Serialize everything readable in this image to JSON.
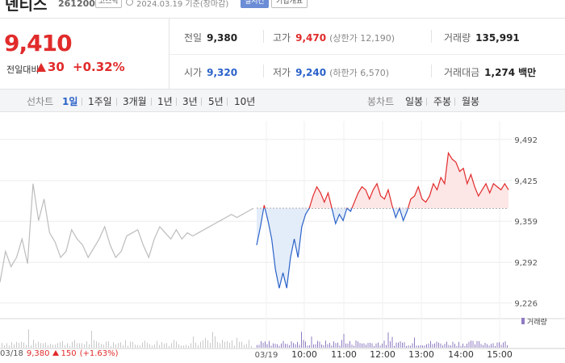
{
  "header": {
    "name": "덴티스",
    "code": "261200",
    "market": "코스닥",
    "date": "2024.03.19 기준(장마감)",
    "realtime_label": "실시간",
    "company_label": "기업개요"
  },
  "price": {
    "current": "9,410",
    "change_label": "전일대비",
    "change": "30",
    "change_pct": "+0.32%"
  },
  "stats": {
    "prev_label": "전일",
    "prev": "9,380",
    "high_label": "고가",
    "high": "9,470",
    "upper_label": "(상한가 12,190)",
    "volume_label": "거래량",
    "volume": "135,991",
    "open_label": "시가",
    "open": "9,320",
    "low_label": "저가",
    "low": "9,240",
    "lower_label": "(하한가 6,570)",
    "amount_label": "거래대금",
    "amount": "1,274",
    "amount_unit": "백만"
  },
  "toolbar": {
    "line_chart": "선차트",
    "periods": [
      "1일",
      "1주일",
      "3개월",
      "1년",
      "3년",
      "5년",
      "10년"
    ],
    "candle_chart": "봉차트",
    "candles": [
      "일봉",
      "주봉",
      "월봉"
    ]
  },
  "volume_legend": "거래량",
  "prev_day": {
    "date": "03/18",
    "price": "9,380",
    "change": "150",
    "pct": "(+1.63%)"
  },
  "colors": {
    "up": "#e12b2b",
    "down": "#2a62c9",
    "prev": "#bcbcbc",
    "volume": "#8f7bc2"
  },
  "chart_data": {
    "type": "line",
    "y_ticks": [
      "9,492",
      "9,425",
      "9,359",
      "9,292",
      "9,226"
    ],
    "y_tick_values": [
      9492,
      9425,
      9359,
      9292,
      9226
    ],
    "ylim": [
      9207,
      9522
    ],
    "x_ticks": [
      "03/19",
      "10:00",
      "11:00",
      "12:00",
      "13:00",
      "14:00",
      "15:00"
    ],
    "baseline": 9380,
    "prev_day_series": [
      9260,
      9310,
      9285,
      9300,
      9330,
      9290,
      9420,
      9360,
      9395,
      9340,
      9325,
      9300,
      9310,
      9345,
      9330,
      9320,
      9300,
      9315,
      9330,
      9350,
      9320,
      9300,
      9310,
      9335,
      9340,
      9345,
      9320,
      9300,
      9330,
      9350,
      9340,
      9330,
      9345,
      9330,
      9340,
      9335,
      9340,
      9345,
      9350,
      9355,
      9360,
      9365,
      9370,
      9365,
      9370,
      9375,
      9380
    ],
    "today_series": [
      9320,
      9350,
      9385,
      9360,
      9330,
      9280,
      9250,
      9275,
      9250,
      9300,
      9330,
      9300,
      9350,
      9370,
      9380,
      9400,
      9415,
      9405,
      9390,
      9405,
      9380,
      9355,
      9370,
      9360,
      9380,
      9375,
      9390,
      9405,
      9415,
      9410,
      9395,
      9410,
      9420,
      9400,
      9395,
      9410,
      9385,
      9365,
      9380,
      9360,
      9375,
      9395,
      9400,
      9415,
      9395,
      9390,
      9400,
      9420,
      9410,
      9430,
      9420,
      9470,
      9460,
      9455,
      9440,
      9445,
      9420,
      9435,
      9415,
      9400,
      9410,
      9420,
      9405,
      9420,
      9415,
      9410,
      9420,
      9410
    ]
  }
}
